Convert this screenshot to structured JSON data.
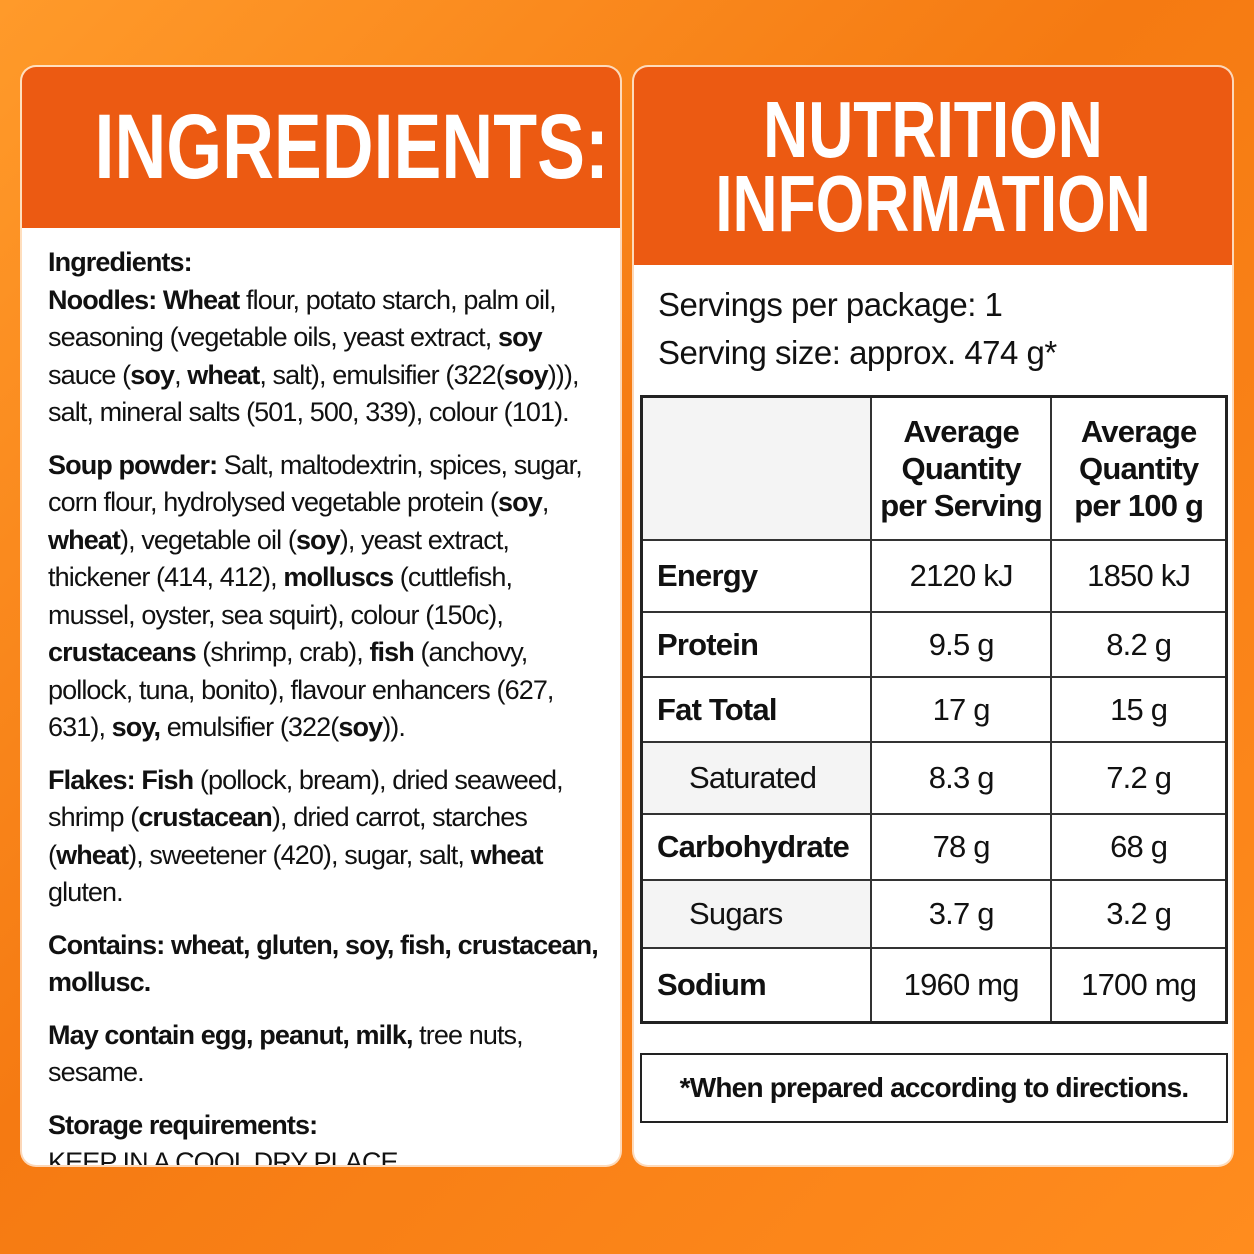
{
  "ingredients": {
    "title": "INGREDIENTS:",
    "heading": "Ingredients:",
    "paragraphs": [
      [
        {
          "text": "Noodles: Wheat",
          "bold": true
        },
        {
          "text": " flour, potato starch, palm oil, seasoning (vegetable oils, yeast extract, "
        },
        {
          "text": "soy",
          "bold": true
        },
        {
          "text": " sauce ("
        },
        {
          "text": "soy",
          "bold": true
        },
        {
          "text": ", "
        },
        {
          "text": "wheat",
          "bold": true
        },
        {
          "text": ", salt), emulsifier (322("
        },
        {
          "text": "soy",
          "bold": true
        },
        {
          "text": "))), salt, mineral salts (501, 500, 339), colour (101)."
        }
      ],
      [
        {
          "text": "Soup powder:",
          "bold": true
        },
        {
          "text": " Salt, maltodextrin, spices, sugar, corn flour, hydrolysed vegetable protein ("
        },
        {
          "text": "soy",
          "bold": true
        },
        {
          "text": ", "
        },
        {
          "text": "wheat",
          "bold": true
        },
        {
          "text": "), vegetable oil ("
        },
        {
          "text": "soy",
          "bold": true
        },
        {
          "text": "), yeast extract, thickener (414, 412), "
        },
        {
          "text": "molluscs",
          "bold": true
        },
        {
          "text": " (cuttlefish, mussel, oyster, sea squirt), colour (150c), "
        },
        {
          "text": "crustaceans",
          "bold": true
        },
        {
          "text": " (shrimp, crab), "
        },
        {
          "text": "fish",
          "bold": true
        },
        {
          "text": " (anchovy, pollock, tuna, bonito), flavour enhancers (627, 631), "
        },
        {
          "text": "soy,",
          "bold": true
        },
        {
          "text": " emulsifier (322("
        },
        {
          "text": "soy",
          "bold": true
        },
        {
          "text": "))."
        }
      ],
      [
        {
          "text": "Flakes: Fish",
          "bold": true
        },
        {
          "text": " (pollock, bream), dried seaweed, shrimp ("
        },
        {
          "text": "crustacean",
          "bold": true
        },
        {
          "text": "), dried carrot, starches ("
        },
        {
          "text": "wheat",
          "bold": true
        },
        {
          "text": "), sweetener (420), sugar, salt, "
        },
        {
          "text": "wheat",
          "bold": true
        },
        {
          "text": " gluten."
        }
      ],
      [
        {
          "text": "Contains: wheat, gluten, soy, fish, crustacean, mollusc.",
          "bold": true
        }
      ],
      [
        {
          "text": "May contain egg, peanut, milk,",
          "bold": true
        },
        {
          "text": " tree nuts, sesame."
        }
      ]
    ],
    "storage_label": "Storage requirements:",
    "storage_text": "KEEP IN A COOL DRY PLACE."
  },
  "nutrition": {
    "title_lines": [
      "NUTRITION",
      "INFORMATION"
    ],
    "servings": [
      "Servings per package: 1",
      "Serving size: approx. 474 g*"
    ],
    "table": {
      "headers": [
        "Average Quantity per Serving",
        "Average Quantity per 100 g"
      ],
      "rows": [
        {
          "name": "Energy",
          "per_serving": "2120 kJ",
          "per_100g": "1850 kJ"
        },
        {
          "name": "Protein",
          "per_serving": "9.5 g",
          "per_100g": "8.2 g"
        },
        {
          "name": "Fat Total",
          "per_serving": "17 g",
          "per_100g": "15 g"
        },
        {
          "name": "Saturated",
          "per_serving": "8.3 g",
          "per_100g": "7.2 g",
          "sub": true
        },
        {
          "name": "Carbohydrate",
          "per_serving": "78 g",
          "per_100g": "68 g"
        },
        {
          "name": "Sugars",
          "per_serving": "3.7 g",
          "per_100g": "3.2 g",
          "sub": true
        },
        {
          "name": "Sodium",
          "per_serving": "1960 mg",
          "per_100g": "1700 mg"
        }
      ]
    },
    "footnote": "*When prepared according to directions."
  }
}
